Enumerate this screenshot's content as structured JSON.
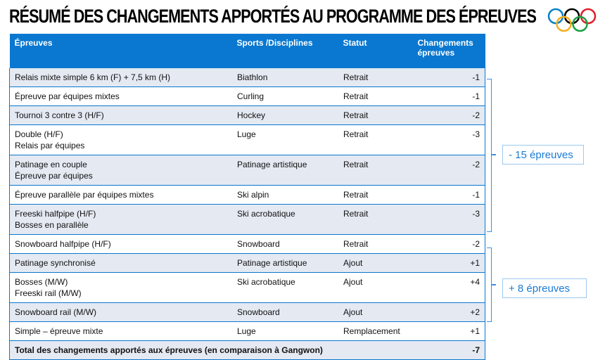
{
  "title": "RÉSUMÉ DES CHANGEMENTS APPORTÉS AU PROGRAMME DES ÉPREUVES",
  "logo": "olympic-rings",
  "colors": {
    "header": "#0a78d0",
    "row_shade": "#e4e9f2",
    "annotation": "#1a7bd6"
  },
  "headers": [
    "Épreuves",
    "Sports /Disciplines",
    "Statut",
    "Changements épreuves"
  ],
  "rows": [
    {
      "event": "Relais mixte simple 6 km (F) + 7,5 km (H)",
      "sport": "Biathlon",
      "status": "Retrait",
      "change": "-1"
    },
    {
      "event": "Épreuve par équipes mixtes",
      "sport": "Curling",
      "status": "Retrait",
      "change": "-1"
    },
    {
      "event": "Tournoi 3 contre 3 (H/F)",
      "sport": "Hockey",
      "status": "Retrait",
      "change": "-2"
    },
    {
      "event": "Double (H/F)\nRelais par équipes",
      "sport": "Luge",
      "status": "Retrait",
      "change": "-3"
    },
    {
      "event": "Patinage en couple\nÉpreuve par équipes",
      "sport": "Patinage artistique",
      "status": "Retrait",
      "change": "-2"
    },
    {
      "event": "Épreuve parallèle par équipes mixtes",
      "sport": "Ski alpin",
      "status": "Retrait",
      "change": "-1"
    },
    {
      "event": "Freeski halfpipe (H/F)\nBosses en parallèle",
      "sport": "Ski acrobatique",
      "status": "Retrait",
      "change": "-3"
    },
    {
      "event": "Snowboard halfpipe (H/F)",
      "sport": "Snowboard",
      "status": "Retrait",
      "change": "-2"
    },
    {
      "event": "Patinage synchronisé",
      "sport": "Patinage artistique",
      "status": "Ajout",
      "change": "+1"
    },
    {
      "event": "Bosses (M/W)\nFreeski rail (M/W)",
      "sport": "Ski acrobatique",
      "status": "Ajout",
      "change": "+4"
    },
    {
      "event": "Snowboard rail  (M/W)",
      "sport": "Snowboard",
      "status": "Ajout",
      "change": "+2"
    },
    {
      "event": "Simple – épreuve mixte",
      "sport": "Luge",
      "status": "Remplacement",
      "change": "+1"
    }
  ],
  "total": {
    "label": "Total des changements apportés aux épreuves (en comparaison à Gangwon)",
    "value": "-7"
  },
  "annotations": {
    "removed": "- 15 épreuves",
    "added": "+ 8 épreuves"
  }
}
